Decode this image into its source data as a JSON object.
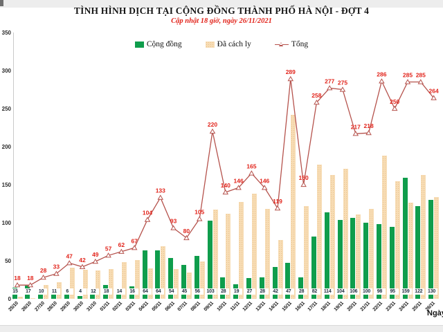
{
  "page": {
    "title": "TÌNH HÌNH DỊCH TẠI CỘNG ĐỒNG THÀNH PHỐ HÀ NỘI - ĐỢT 4",
    "subtitle": "Cập nhật 18 giờ, ngày 26/11/2021"
  },
  "legend": {
    "items": [
      {
        "label": "Cộng đồng",
        "color": "#0f9d4c",
        "type": "bar"
      },
      {
        "label": "Đã cách ly",
        "color": "#f7dcb4",
        "type": "bar"
      },
      {
        "label": "Tổng",
        "color": "#b5524c",
        "type": "line"
      }
    ]
  },
  "axes": {
    "y_ticks": [
      "0",
      "50",
      "100",
      "150",
      "200",
      "250",
      "300",
      "350"
    ],
    "x_axis_label": "Ngày"
  },
  "chart_data": {
    "type": "bar",
    "title": "TÌNH HÌNH DỊCH TẠI CỘNG ĐỒNG THÀNH PHỐ HÀ NỘI - ĐỢT 4",
    "subtitle": "Cập nhật 18 giờ, ngày 26/11/2021",
    "xlabel": "Ngày",
    "ylabel": "",
    "ylim": [
      0,
      350
    ],
    "grid": false,
    "legend_position": "top",
    "categories": [
      "25/10",
      "26/10",
      "27/10",
      "28/10",
      "29/10",
      "30/10",
      "31/10",
      "01/11",
      "02/11",
      "03/11",
      "04/11",
      "05/11",
      "06/11",
      "07/11",
      "08/11",
      "09/11",
      "10/11",
      "11/11",
      "12/11",
      "13/11",
      "14/11",
      "15/11",
      "16/11",
      "17/11",
      "18/11",
      "19/11",
      "20/11",
      "21/11",
      "22/11",
      "23/11",
      "24/11",
      "25/11",
      "26/11"
    ],
    "series": [
      {
        "name": "Cộng đồng",
        "type": "bar",
        "color": "#0f9d4c",
        "values": [
          15,
          17,
          10,
          11,
          6,
          4,
          12,
          18,
          14,
          16,
          64,
          64,
          54,
          45,
          56,
          103,
          28,
          19,
          27,
          28,
          42,
          47,
          28,
          82,
          114,
          104,
          106,
          100,
          98,
          95,
          159,
          122,
          130
        ],
        "labels_shown": true
      },
      {
        "name": "Đã cách ly",
        "type": "bar",
        "color": "#f7dcb4",
        "values": [
          3,
          1,
          18,
          22,
          41,
          38,
          37,
          39,
          48,
          51,
          40,
          69,
          39,
          35,
          49,
          117,
          112,
          127,
          138,
          118,
          77,
          242,
          122,
          176,
          163,
          171,
          111,
          118,
          188,
          155,
          126,
          163,
          134
        ],
        "labels_shown": false
      },
      {
        "name": "Tổng",
        "type": "line",
        "color": "#b5524c",
        "label_color": "#e2231a",
        "values": [
          18,
          18,
          28,
          33,
          47,
          42,
          49,
          57,
          62,
          67,
          104,
          133,
          93,
          80,
          105,
          220,
          140,
          146,
          165,
          146,
          119,
          289,
          150,
          258,
          277,
          275,
          217,
          218,
          286,
          250,
          285,
          285,
          264
        ],
        "labels_shown": true
      }
    ]
  }
}
